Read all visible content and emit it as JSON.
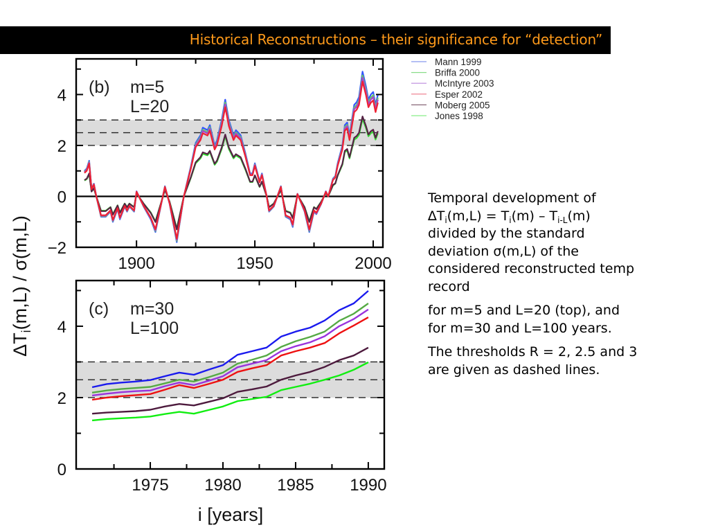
{
  "title": "Historical Reconstructions – their significance for “detection”",
  "legend": {
    "items": [
      {
        "name": "Mann 1999",
        "color": "#8899ee"
      },
      {
        "name": "Briffa 2000",
        "color": "#88dd88"
      },
      {
        "name": "McIntyre 2003",
        "color": "#bb88dd"
      },
      {
        "name": "Esper 2002",
        "color": "#ee7788"
      },
      {
        "name": "Moberg 2005",
        "color": "#886677"
      },
      {
        "name": "Jones 1998",
        "color": "#88ee88"
      }
    ]
  },
  "description": {
    "p1_line1": "Temporal development of",
    "p1_delta": "∆T",
    "p1_sub_i": "i",
    "p1_mid": "(m,L) = T",
    "p1_sub_i2": "i",
    "p1_mid2": "(m) – T",
    "p1_sub_il": "i-L",
    "p1_end": "(m)",
    "p1_line3": "divided by the standard",
    "p1_line4": "deviation σ(m,L) of the",
    "p1_line5": "considered reconstructed temp",
    "p1_line6": "record",
    "p2_line1": "for m=5 and L=20 (top), and",
    "p2_line2": "for m=30 and L=100 years.",
    "p3_line1": "The thresholds R = 2, 2.5 and 3",
    "p3_line2": "are given as dashed lines."
  },
  "chart_data": [
    {
      "type": "line",
      "panel_label": "(b)",
      "params": [
        "m=5",
        "L=20"
      ],
      "xlabel": "",
      "ylabel": "ΔTi(m,L) / σ(m,L)",
      "ylabel_main": "ΔT",
      "ylabel_sub": "i",
      "ylabel_rest": "(m,L) / σ(m,L)",
      "xlim": [
        1874.5,
        2004.1
      ],
      "ylim": [
        -2,
        5.4
      ],
      "x_ticks": [
        1900,
        1950,
        2000
      ],
      "x_tick_labels": [
        "1900",
        "1950",
        "2000"
      ],
      "x_minor_ticks": [
        1925,
        1975
      ],
      "y_ticks": [
        -2,
        0,
        2,
        4
      ],
      "y_tick_labels": [
        "−2",
        "0",
        "2",
        "4"
      ],
      "y_minor_ticks": [
        -1,
        1,
        3,
        5
      ],
      "zero_line": 0,
      "thresholds": [
        2,
        2.5,
        3
      ],
      "threshold_band": [
        2,
        3
      ],
      "x": [
        1878,
        1879,
        1880,
        1881,
        1882,
        1883,
        1885,
        1887,
        1889,
        1890,
        1892,
        1893,
        1895,
        1896,
        1897,
        1899,
        1900,
        1903,
        1906,
        1908,
        1912,
        1914,
        1917,
        1920,
        1923,
        1925,
        1927,
        1928,
        1930,
        1931,
        1933,
        1934,
        1936,
        1937.5,
        1939,
        1941,
        1942,
        1944,
        1946,
        1948,
        1949,
        1950,
        1952,
        1953,
        1955,
        1956,
        1958,
        1961,
        1963,
        1965,
        1966,
        1968,
        1971,
        1973,
        1975,
        1976,
        1978,
        1980,
        1981,
        1983,
        1984,
        1985,
        1987,
        1988,
        1989,
        1990,
        1992,
        1993,
        1994,
        1995.5,
        1997,
        1998,
        1999,
        2000,
        2001,
        2002
      ],
      "series": [
        {
          "name": "Jones 1998",
          "color": "#33dd33",
          "values": [
            0.62,
            0.68,
            0.87,
            0.19,
            0.31,
            0,
            -0.56,
            -0.56,
            -0.42,
            -0.7,
            -0.35,
            -0.63,
            -0.28,
            -0.42,
            -0.28,
            -0.42,
            0.12,
            -0.28,
            -0.63,
            -0.98,
            0.25,
            -0.21,
            -1.26,
            0,
            0.74,
            1.3,
            1.49,
            1.67,
            1.61,
            1.74,
            1.24,
            1.36,
            1.86,
            2.36,
            1.86,
            1.49,
            1.61,
            1.49,
            1.05,
            0.56,
            0.56,
            0.81,
            0.37,
            0.56,
            0,
            -0.42,
            -0.28,
            0.25,
            -0.56,
            -0.63,
            -0.84,
            0.06,
            -0.42,
            -0.98,
            -0.42,
            -0.49,
            -0.21,
            0.12,
            0,
            0.43,
            0.5,
            0.81,
            1.24,
            1.74,
            1.8,
            1.49,
            2.23,
            2.29,
            2.42,
            3.04,
            2.67,
            2.36,
            2.48,
            2.54,
            2.23,
            2.48
          ]
        },
        {
          "name": "Moberg 2005",
          "color": "#552244",
          "values": [
            0.64,
            0.7,
            0.9,
            0.19,
            0.32,
            0,
            -0.58,
            -0.58,
            -0.43,
            -0.72,
            -0.36,
            -0.65,
            -0.29,
            -0.43,
            -0.29,
            -0.43,
            0.13,
            -0.29,
            -0.65,
            -1.01,
            0.26,
            -0.22,
            -1.3,
            0,
            0.77,
            1.34,
            1.54,
            1.73,
            1.66,
            1.79,
            1.28,
            1.41,
            1.92,
            2.43,
            1.92,
            1.54,
            1.66,
            1.54,
            1.09,
            0.58,
            0.58,
            0.83,
            0.38,
            0.58,
            0,
            -0.43,
            -0.29,
            0.26,
            -0.58,
            -0.65,
            -0.86,
            0.06,
            -0.43,
            -1.01,
            -0.43,
            -0.5,
            -0.22,
            0.13,
            0,
            0.45,
            0.51,
            0.83,
            1.28,
            1.79,
            1.86,
            1.54,
            2.3,
            2.37,
            2.5,
            3.14,
            2.75,
            2.43,
            2.56,
            2.62,
            2.3,
            2.56
          ]
        },
        {
          "name": "Mann 1999",
          "color": "#3355ff",
          "values": [
            1.0,
            1.1,
            1.4,
            0.3,
            0.5,
            0.0,
            -0.8,
            -0.8,
            -0.6,
            -1.0,
            -0.5,
            -0.9,
            -0.4,
            -0.6,
            -0.4,
            -0.6,
            0.2,
            -0.4,
            -0.9,
            -1.4,
            0.4,
            -0.3,
            -1.8,
            0.0,
            1.2,
            2.1,
            2.4,
            2.7,
            2.6,
            2.8,
            2.0,
            2.2,
            3.0,
            3.8,
            3.0,
            2.4,
            2.6,
            2.4,
            1.7,
            0.9,
            0.9,
            1.3,
            0.6,
            0.9,
            0.0,
            -0.6,
            -0.4,
            0.4,
            -0.8,
            -0.9,
            -1.2,
            0.1,
            -0.6,
            -1.4,
            -0.6,
            -0.7,
            -0.3,
            0.2,
            0.0,
            0.7,
            0.8,
            1.3,
            2.0,
            2.8,
            2.9,
            2.4,
            3.6,
            3.7,
            3.9,
            4.9,
            4.3,
            3.8,
            4.0,
            4.1,
            3.6,
            4.0
          ]
        },
        {
          "name": "Briffa 2000",
          "color": "#66cc66",
          "values": [
            0.97,
            1.07,
            1.36,
            0.29,
            0.49,
            0,
            -0.78,
            -0.78,
            -0.58,
            -0.97,
            -0.49,
            -0.87,
            -0.39,
            -0.58,
            -0.39,
            -0.58,
            0.19,
            -0.39,
            -0.87,
            -1.36,
            0.39,
            -0.29,
            -1.75,
            0,
            1.16,
            2.04,
            2.33,
            2.62,
            2.52,
            2.72,
            1.94,
            2.13,
            2.91,
            3.69,
            2.91,
            2.33,
            2.52,
            2.33,
            1.65,
            0.87,
            0.87,
            1.26,
            0.58,
            0.87,
            0,
            -0.58,
            -0.39,
            0.39,
            -0.78,
            -0.87,
            -1.16,
            0.1,
            -0.58,
            -1.36,
            -0.58,
            -0.68,
            -0.29,
            0.19,
            0,
            0.68,
            0.78,
            1.26,
            1.94,
            2.72,
            2.81,
            2.33,
            3.49,
            3.59,
            3.78,
            4.75,
            4.17,
            3.69,
            3.88,
            3.98,
            3.49,
            3.88
          ]
        },
        {
          "name": "McIntyre 2003",
          "color": "#aa44cc",
          "values": [
            0.95,
            1.05,
            1.33,
            0.29,
            0.48,
            0,
            -0.76,
            -0.76,
            -0.57,
            -0.95,
            -0.48,
            -0.86,
            -0.38,
            -0.57,
            -0.38,
            -0.57,
            0.19,
            -0.38,
            -0.86,
            -1.33,
            0.38,
            -0.29,
            -1.71,
            0,
            1.14,
            2.0,
            2.28,
            2.57,
            2.47,
            2.66,
            1.9,
            2.09,
            2.85,
            3.61,
            2.85,
            2.28,
            2.47,
            2.28,
            1.62,
            0.86,
            0.86,
            1.24,
            0.57,
            0.86,
            0,
            -0.57,
            -0.38,
            0.38,
            -0.76,
            -0.86,
            -1.14,
            0.1,
            -0.57,
            -1.33,
            -0.57,
            -0.67,
            -0.29,
            0.19,
            0,
            0.67,
            0.76,
            1.24,
            1.9,
            2.66,
            2.76,
            2.28,
            3.42,
            3.52,
            3.71,
            4.66,
            4.09,
            3.61,
            3.8,
            3.9,
            3.42,
            3.8
          ]
        },
        {
          "name": "Esper 2002",
          "color": "#ee2233",
          "values": [
            0.92,
            1.01,
            1.29,
            0.28,
            0.46,
            0,
            -0.74,
            -0.74,
            -0.55,
            -0.92,
            -0.46,
            -0.83,
            -0.37,
            -0.55,
            -0.37,
            -0.55,
            0.18,
            -0.37,
            -0.83,
            -1.29,
            0.37,
            -0.28,
            -1.66,
            0,
            1.1,
            1.93,
            2.21,
            2.48,
            2.39,
            2.58,
            1.84,
            2.02,
            2.76,
            3.5,
            2.76,
            2.21,
            2.39,
            2.21,
            1.56,
            0.83,
            0.83,
            1.2,
            0.55,
            0.83,
            0,
            -0.55,
            -0.37,
            0.37,
            -0.74,
            -0.83,
            -1.1,
            0.09,
            -0.55,
            -1.29,
            -0.55,
            -0.64,
            -0.28,
            0.18,
            0,
            0.64,
            0.74,
            1.2,
            1.84,
            2.58,
            2.67,
            2.21,
            3.31,
            3.4,
            3.59,
            4.51,
            3.96,
            3.5,
            3.68,
            3.77,
            3.31,
            3.68
          ]
        }
      ]
    },
    {
      "type": "line",
      "panel_label": "(c)",
      "params": [
        "m=30",
        "L=100"
      ],
      "xlabel": "i [years]",
      "ylabel": "ΔTi(m,L) / σ(m,L)",
      "xlim": [
        1969.9,
        1991.1
      ],
      "ylim": [
        0,
        5.28
      ],
      "x_ticks": [
        1975,
        1980,
        1985,
        1990
      ],
      "x_tick_labels": [
        "1975",
        "1980",
        "1985",
        "1990"
      ],
      "x_minor_ticks": [
        1972.5,
        1977.5,
        1982.5,
        1987.5
      ],
      "y_ticks": [
        0,
        2,
        4
      ],
      "y_tick_labels": [
        "0",
        "2",
        "4"
      ],
      "y_minor_ticks": [
        1,
        3,
        5
      ],
      "thresholds": [
        2,
        2.5,
        3
      ],
      "threshold_band": [
        2,
        3
      ],
      "x": [
        1971,
        1972,
        1973,
        1974,
        1975,
        1976,
        1977,
        1978,
        1979,
        1980,
        1981,
        1982,
        1983,
        1984,
        1985,
        1986,
        1987,
        1988,
        1989,
        1990
      ],
      "series": [
        {
          "name": "Mann 1999",
          "color": "#1a1aee",
          "values": [
            2.29,
            2.38,
            2.42,
            2.45,
            2.49,
            2.6,
            2.7,
            2.64,
            2.78,
            2.91,
            3.2,
            3.3,
            3.4,
            3.71,
            3.85,
            3.96,
            4.16,
            4.45,
            4.64,
            4.99
          ]
        },
        {
          "name": "Briffa 2000",
          "color": "#55aa44",
          "values": [
            2.14,
            2.2,
            2.24,
            2.27,
            2.3,
            2.4,
            2.5,
            2.45,
            2.57,
            2.7,
            2.95,
            3.06,
            3.18,
            3.42,
            3.58,
            3.7,
            3.85,
            4.15,
            4.35,
            4.64
          ]
        },
        {
          "name": "McIntyre 2003",
          "color": "#9933dd",
          "values": [
            2.06,
            2.11,
            2.15,
            2.18,
            2.2,
            2.32,
            2.42,
            2.35,
            2.47,
            2.6,
            2.85,
            2.95,
            3.05,
            3.3,
            3.44,
            3.55,
            3.72,
            4.0,
            4.2,
            4.47
          ]
        },
        {
          "name": "Esper 2002",
          "color": "#ee1111",
          "values": [
            1.94,
            2.0,
            2.04,
            2.07,
            2.1,
            2.22,
            2.35,
            2.27,
            2.38,
            2.5,
            2.72,
            2.82,
            2.91,
            3.18,
            3.3,
            3.4,
            3.53,
            3.8,
            4.02,
            4.25
          ]
        },
        {
          "name": "Moberg 2005",
          "color": "#4d1a3d",
          "values": [
            1.55,
            1.58,
            1.6,
            1.62,
            1.66,
            1.75,
            1.82,
            1.78,
            1.88,
            1.98,
            2.16,
            2.23,
            2.31,
            2.5,
            2.62,
            2.72,
            2.86,
            3.05,
            3.18,
            3.4
          ]
        },
        {
          "name": "Jones 1998",
          "color": "#11ee11",
          "values": [
            1.36,
            1.4,
            1.42,
            1.44,
            1.47,
            1.54,
            1.6,
            1.55,
            1.65,
            1.75,
            1.9,
            1.96,
            2.02,
            2.21,
            2.3,
            2.39,
            2.5,
            2.62,
            2.78,
            2.99
          ]
        }
      ]
    }
  ]
}
